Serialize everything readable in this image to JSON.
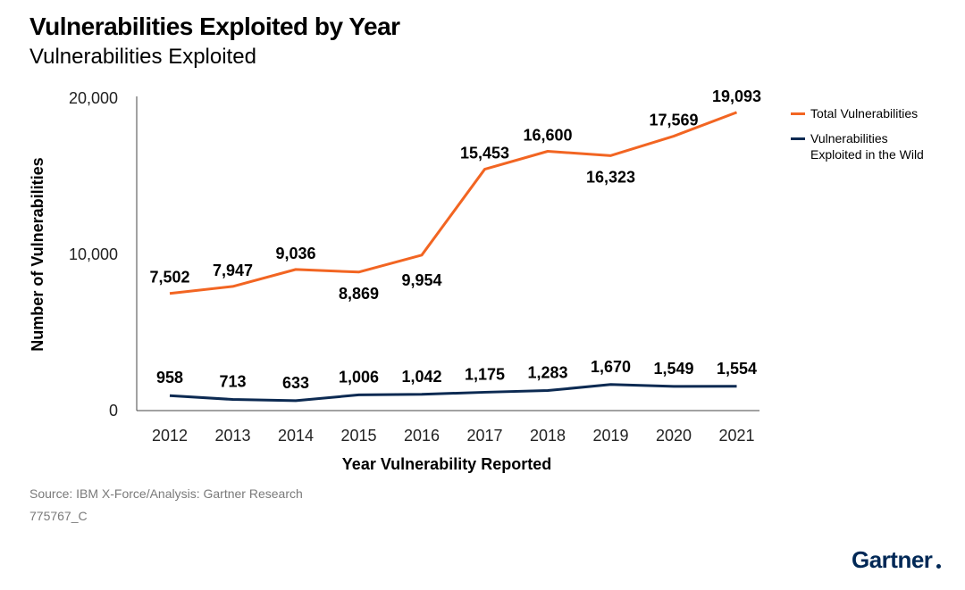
{
  "header": {
    "title": "Vulnerabilities Exploited by Year",
    "subtitle": "Vulnerabilities Exploited"
  },
  "footer": {
    "source": "Source: IBM X-Force/Analysis: Gartner Research",
    "code": "775767_C",
    "logo": "Gartner"
  },
  "chart_data": {
    "type": "line",
    "title": "Vulnerabilities Exploited by Year",
    "subtitle": "Vulnerabilities Exploited",
    "xlabel": "Year Vulnerability Reported",
    "ylabel": "Number of Vulnerabilities",
    "x": [
      "2012",
      "2013",
      "2014",
      "2015",
      "2016",
      "2017",
      "2018",
      "2019",
      "2020",
      "2021"
    ],
    "ylim": [
      0,
      20000
    ],
    "yticks": [
      0,
      10000,
      20000
    ],
    "ytick_labels": [
      "0",
      "10,000",
      "20,000"
    ],
    "grid": false,
    "legend_position": "right",
    "series": [
      {
        "name": "Total Vulnerabilities",
        "color": "#f26522",
        "values": [
          7502,
          7947,
          9036,
          8869,
          9954,
          15453,
          16600,
          16323,
          17569,
          19093
        ],
        "labels": [
          "7,502",
          "7,947",
          "9,036",
          "8,869",
          "9,954",
          "15,453",
          "16,600",
          "16,323",
          "17,569",
          "19,093"
        ]
      },
      {
        "name": "Vulnerabilities Exploited in the Wild",
        "name_lines": [
          "Vulnerabilities",
          "Exploited in the Wild"
        ],
        "color": "#0c2a52",
        "values": [
          958,
          713,
          633,
          1006,
          1042,
          1175,
          1283,
          1670,
          1549,
          1554
        ],
        "labels": [
          "958",
          "713",
          "633",
          "1,006",
          "1,042",
          "1,175",
          "1,283",
          "1,670",
          "1,549",
          "1,554"
        ]
      }
    ]
  }
}
